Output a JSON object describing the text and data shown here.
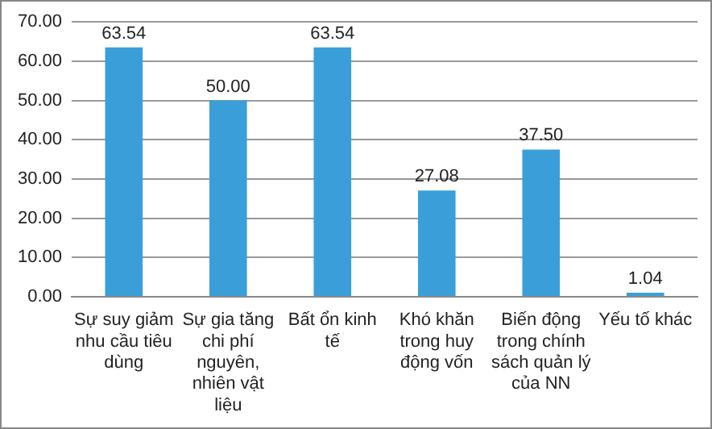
{
  "chart_data": {
    "type": "bar",
    "categories": [
      "Sự suy giảm nhu cầu tiêu dùng",
      "Sự gia tăng chi phí nguyên, nhiên vật liệu",
      "Bất ổn kinh tế",
      "Khó khăn trong huy động vốn",
      "Biến động trong chính sách quản lý của NN",
      "Yếu tố khác"
    ],
    "values": [
      63.54,
      50.0,
      63.54,
      27.08,
      37.5,
      1.04
    ],
    "value_labels": [
      "63.54",
      "50.00",
      "63.54",
      "27.08",
      "37.50",
      "1.04"
    ],
    "color": "#3a9fd8",
    "ylim": [
      0,
      70
    ],
    "yticks": [
      {
        "value": 0,
        "label": "0.00"
      },
      {
        "value": 10,
        "label": "10.00"
      },
      {
        "value": 20,
        "label": "20.00"
      },
      {
        "value": 30,
        "label": "30.00"
      },
      {
        "value": 40,
        "label": "40.00"
      },
      {
        "value": 50,
        "label": "50.00"
      },
      {
        "value": 60,
        "label": "60.00"
      },
      {
        "value": 70,
        "label": "70.00"
      }
    ],
    "grid": "y"
  }
}
